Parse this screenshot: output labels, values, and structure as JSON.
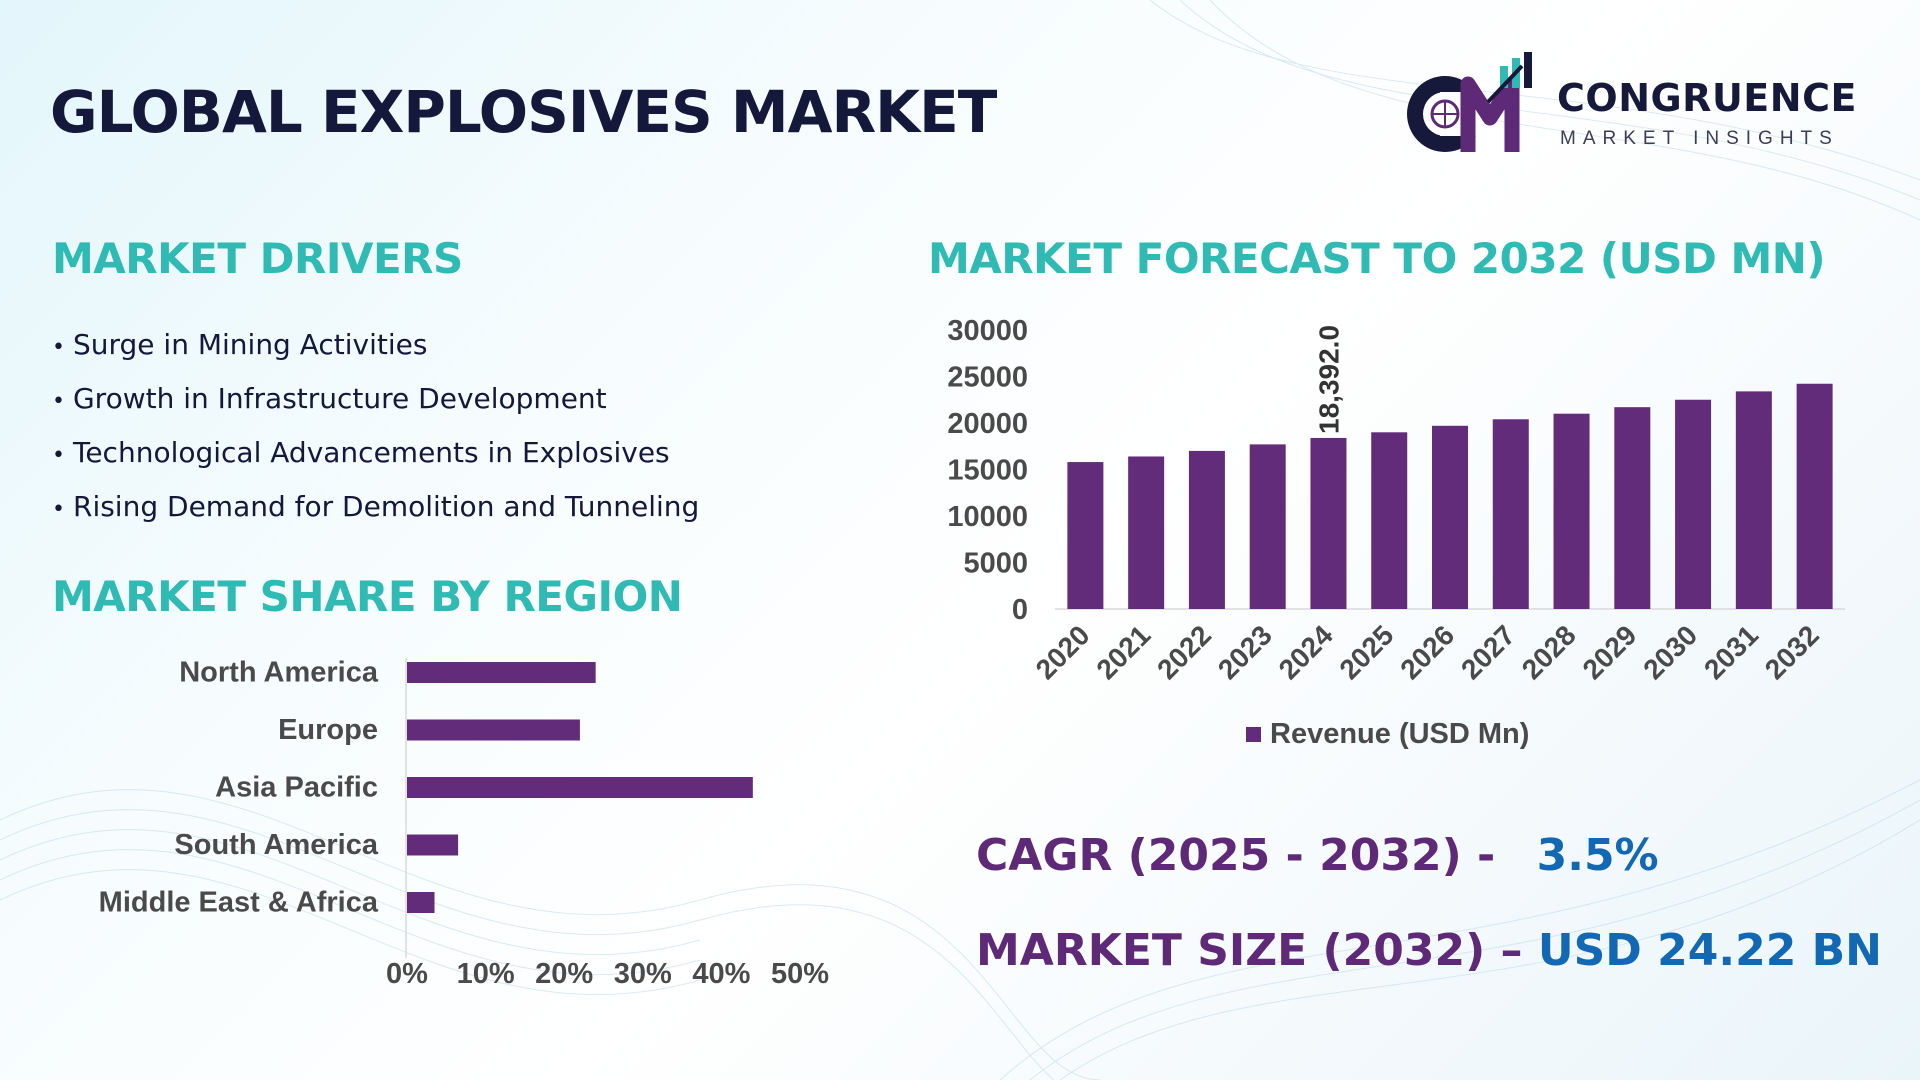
{
  "title": "GLOBAL EXPLOSIVES MARKET",
  "logo": {
    "name": "CONGRUENCE",
    "tagline": "MARKET INSIGHTS",
    "colors": [
      "#17193a",
      "#5e2a78",
      "#2fbab3"
    ]
  },
  "drivers": {
    "heading": "MARKET DRIVERS",
    "items": [
      "Surge in Mining Activities",
      "Growth in Infrastructure Development",
      "Technological Advancements in Explosives",
      "Rising Demand for Demolition and Tunneling"
    ]
  },
  "region_heading": "MARKET SHARE BY REGION",
  "forecast_heading": "MARKET FORECAST TO 2032 (USD MN)",
  "stats": {
    "cagr_label": "CAGR (2025 - 2032) -",
    "cagr_value": "3.5%",
    "size_label": "MARKET SIZE (2032) –",
    "size_value": "USD 24.22 BN"
  },
  "colors": {
    "bar": "#622c7a",
    "heading": "#2fbab3",
    "title": "#14183a",
    "stat_label": "#5e2a78",
    "stat_value": "#1268b3"
  },
  "chart_data": [
    {
      "type": "bar",
      "orientation": "horizontal",
      "categories": [
        "North America",
        "Europe",
        "Asia Pacific",
        "South America",
        "Middle East & Africa"
      ],
      "values": [
        24,
        22,
        44,
        6.5,
        3.5
      ],
      "xlim": [
        0,
        50
      ],
      "xticks": [
        "0%",
        "10%",
        "20%",
        "30%",
        "40%",
        "50%"
      ],
      "grid": false
    },
    {
      "type": "bar",
      "categories": [
        "2020",
        "2021",
        "2022",
        "2023",
        "2024",
        "2025",
        "2026",
        "2027",
        "2028",
        "2029",
        "2030",
        "2031",
        "2032"
      ],
      "series": [
        {
          "name": "Revenue (USD Mn)",
          "values": [
            15800,
            16400,
            17000,
            17700,
            18392,
            19000,
            19700,
            20400,
            21000,
            21700,
            22500,
            23400,
            24220
          ]
        }
      ],
      "data_labels": [
        {
          "index": 4,
          "text": "18,392.0"
        }
      ],
      "ylim": [
        0,
        30000
      ],
      "yticks": [
        "0",
        "5000",
        "10000",
        "15000",
        "20000",
        "25000",
        "30000"
      ],
      "legend": "bottom",
      "grid": false
    }
  ]
}
